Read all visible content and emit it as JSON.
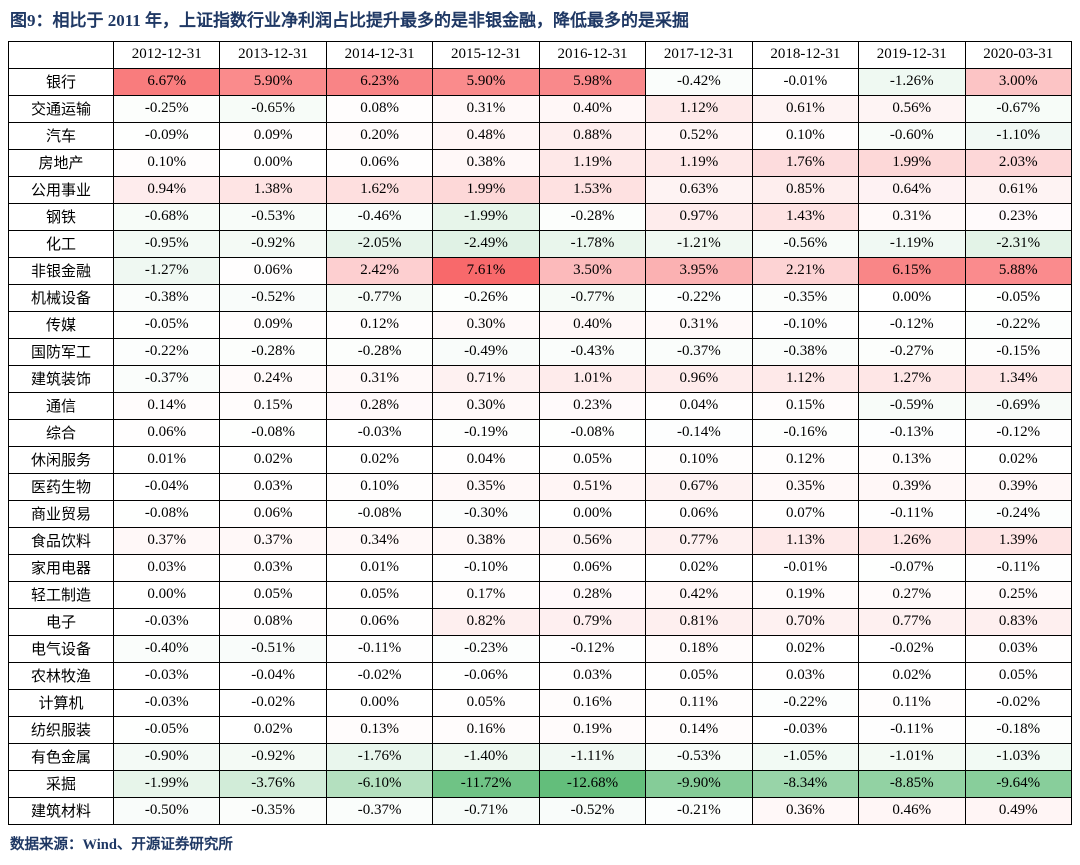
{
  "page": {
    "title": "图9：相比于 2011 年，上证指数行业净利润占比提升最多的是非银金融，降低最多的是采掘",
    "source": "数据来源：Wind、开源证券研究所"
  },
  "chart_data": {
    "type": "heatmap",
    "title": "相比于 2011 年，上证指数行业净利润占比提升最多的是非银金融，降低最多的是采掘",
    "value_format": "percent_two_decimals",
    "value_suffix": "%",
    "color_scale": {
      "positive_max_color": "#F8696B",
      "zero_color": "#FFFFFF",
      "negative_min_color": "#63BE7B"
    },
    "title_color": "#1F3864",
    "border_color": "#000000",
    "columns": [
      "2012-12-31",
      "2013-12-31",
      "2014-12-31",
      "2015-12-31",
      "2016-12-31",
      "2017-12-31",
      "2018-12-31",
      "2019-12-31",
      "2020-03-31"
    ],
    "rows": [
      {
        "name": "银行",
        "values": [
          6.67,
          5.9,
          6.23,
          5.9,
          5.98,
          -0.42,
          -0.01,
          -1.26,
          3.0
        ]
      },
      {
        "name": "交通运输",
        "values": [
          -0.25,
          -0.65,
          0.08,
          0.31,
          0.4,
          1.12,
          0.61,
          0.56,
          -0.67
        ]
      },
      {
        "name": "汽车",
        "values": [
          -0.09,
          0.09,
          0.2,
          0.48,
          0.88,
          0.52,
          0.1,
          -0.6,
          -1.1
        ]
      },
      {
        "name": "房地产",
        "values": [
          0.1,
          0.0,
          0.06,
          0.38,
          1.19,
          1.19,
          1.76,
          1.99,
          2.03
        ]
      },
      {
        "name": "公用事业",
        "values": [
          0.94,
          1.38,
          1.62,
          1.99,
          1.53,
          0.63,
          0.85,
          0.64,
          0.61
        ]
      },
      {
        "name": "钢铁",
        "values": [
          -0.68,
          -0.53,
          -0.46,
          -1.99,
          -0.28,
          0.97,
          1.43,
          0.31,
          0.23
        ]
      },
      {
        "name": "化工",
        "values": [
          -0.95,
          -0.92,
          -2.05,
          -2.49,
          -1.78,
          -1.21,
          -0.56,
          -1.19,
          -2.31
        ]
      },
      {
        "name": "非银金融",
        "values": [
          -1.27,
          0.06,
          2.42,
          7.61,
          3.5,
          3.95,
          2.21,
          6.15,
          5.88
        ]
      },
      {
        "name": "机械设备",
        "values": [
          -0.38,
          -0.52,
          -0.77,
          -0.26,
          -0.77,
          -0.22,
          -0.35,
          0.0,
          -0.05
        ]
      },
      {
        "name": "传媒",
        "values": [
          -0.05,
          0.09,
          0.12,
          0.3,
          0.4,
          0.31,
          -0.1,
          -0.12,
          -0.22
        ]
      },
      {
        "name": "国防军工",
        "values": [
          -0.22,
          -0.28,
          -0.28,
          -0.49,
          -0.43,
          -0.37,
          -0.38,
          -0.27,
          -0.15
        ]
      },
      {
        "name": "建筑装饰",
        "values": [
          -0.37,
          0.24,
          0.31,
          0.71,
          1.01,
          0.96,
          1.12,
          1.27,
          1.34
        ]
      },
      {
        "name": "通信",
        "values": [
          0.14,
          0.15,
          0.28,
          0.3,
          0.23,
          0.04,
          0.15,
          -0.59,
          -0.69
        ]
      },
      {
        "name": "综合",
        "values": [
          0.06,
          -0.08,
          -0.03,
          -0.19,
          -0.08,
          -0.14,
          -0.16,
          -0.13,
          -0.12
        ]
      },
      {
        "name": "休闲服务",
        "values": [
          0.01,
          0.02,
          0.02,
          0.04,
          0.05,
          0.1,
          0.12,
          0.13,
          0.02
        ]
      },
      {
        "name": "医药生物",
        "values": [
          -0.04,
          0.03,
          0.1,
          0.35,
          0.51,
          0.67,
          0.35,
          0.39,
          0.39
        ]
      },
      {
        "name": "商业贸易",
        "values": [
          -0.08,
          0.06,
          -0.08,
          -0.3,
          0.0,
          0.06,
          0.07,
          -0.11,
          -0.24
        ]
      },
      {
        "name": "食品饮料",
        "values": [
          0.37,
          0.37,
          0.34,
          0.38,
          0.56,
          0.77,
          1.13,
          1.26,
          1.39
        ]
      },
      {
        "name": "家用电器",
        "values": [
          0.03,
          0.03,
          0.01,
          -0.1,
          0.06,
          0.02,
          -0.01,
          -0.07,
          -0.11
        ]
      },
      {
        "name": "轻工制造",
        "values": [
          0.0,
          0.05,
          0.05,
          0.17,
          0.28,
          0.42,
          0.19,
          0.27,
          0.25
        ]
      },
      {
        "name": "电子",
        "values": [
          -0.03,
          0.08,
          0.06,
          0.82,
          0.79,
          0.81,
          0.7,
          0.77,
          0.83
        ]
      },
      {
        "name": "电气设备",
        "values": [
          -0.4,
          -0.51,
          -0.11,
          -0.23,
          -0.12,
          0.18,
          0.02,
          -0.02,
          0.03
        ]
      },
      {
        "name": "农林牧渔",
        "values": [
          -0.03,
          -0.04,
          -0.02,
          -0.06,
          0.03,
          0.05,
          0.03,
          0.02,
          0.05
        ]
      },
      {
        "name": "计算机",
        "values": [
          -0.03,
          -0.02,
          0.0,
          0.05,
          0.16,
          0.11,
          -0.22,
          0.11,
          -0.02
        ]
      },
      {
        "name": "纺织服装",
        "values": [
          -0.05,
          0.02,
          0.13,
          0.16,
          0.19,
          0.14,
          -0.03,
          -0.11,
          -0.18
        ]
      },
      {
        "name": "有色金属",
        "values": [
          -0.9,
          -0.92,
          -1.76,
          -1.4,
          -1.11,
          -0.53,
          -1.05,
          -1.01,
          -1.03
        ]
      },
      {
        "name": "采掘",
        "values": [
          -1.99,
          -3.76,
          -6.1,
          -11.72,
          -12.68,
          -9.9,
          -8.34,
          -8.85,
          -9.64
        ]
      },
      {
        "name": "建筑材料",
        "values": [
          -0.5,
          -0.35,
          -0.37,
          -0.71,
          -0.52,
          -0.21,
          0.36,
          0.46,
          0.49
        ]
      }
    ]
  }
}
